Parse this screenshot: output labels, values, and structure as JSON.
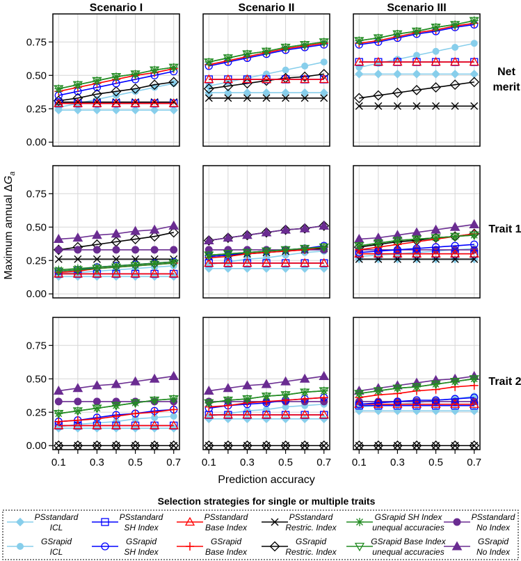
{
  "chart_data": {
    "type": "line",
    "col_titles": [
      "Scenario I",
      "Scenario II",
      "Scenario III"
    ],
    "row_titles": [
      [
        "Net",
        "merit"
      ],
      [
        "Trait 1"
      ],
      [
        "Trait 2"
      ]
    ],
    "xlabel": "Prediction accuracy",
    "ylabel": "Maximum annual ΔGₐ",
    "ylabel_main": "Maximum annual Δ",
    "ylabel_sub": "a",
    "ylabel_g": "G",
    "x": [
      0.1,
      0.2,
      0.3,
      0.4,
      0.5,
      0.6,
      0.7
    ],
    "xticks": [
      "0.1",
      "0.3",
      "0.5",
      "0.7"
    ],
    "xlim": [
      0.07,
      0.73
    ],
    "yticks": [
      "0.00",
      "0.25",
      "0.50",
      "0.75"
    ],
    "ylim": [
      -0.03,
      0.96
    ],
    "legend_title": "Selection strategies for single or multiple traits",
    "legend": [
      {
        "key": "ps_icl",
        "line1": "PSstandard",
        "line2": "ICL",
        "color": "#87ceeb",
        "marker": "diamond"
      },
      {
        "key": "gs_icl",
        "line1": "GSrapid",
        "line2": "ICL",
        "color": "#87ceeb",
        "marker": "dot"
      },
      {
        "key": "ps_sh",
        "line1": "PSstandard",
        "line2": "SH Index",
        "color": "#0000ff",
        "marker": "square"
      },
      {
        "key": "gs_sh",
        "line1": "GSrapid",
        "line2": "SH Index",
        "color": "#0000ff",
        "marker": "circle"
      },
      {
        "key": "ps_base",
        "line1": "PSstandard",
        "line2": "Base Index",
        "color": "#ff0000",
        "marker": "triangle"
      },
      {
        "key": "gs_base",
        "line1": "GSrapid",
        "line2": "Base Index",
        "color": "#ff0000",
        "marker": "plus"
      },
      {
        "key": "ps_restr",
        "line1": "PSstandard",
        "line2": "Restric. Index",
        "color": "#000000",
        "marker": "cross"
      },
      {
        "key": "gs_restr",
        "line1": "GSrapid",
        "line2": "Restric. Index",
        "color": "#000000",
        "marker": "opendiamond"
      },
      {
        "key": "gs_sh_ua",
        "line1": "GSrapid SH Index",
        "line2": "unequal accuracies",
        "color": "#228b22",
        "marker": "asterisk"
      },
      {
        "key": "gs_base_ua",
        "line1": "GSrapid Base Index",
        "line2": "unequal accuracies",
        "color": "#228b22",
        "marker": "invtriangle"
      },
      {
        "key": "ps_noidx",
        "line1": "PSstandard",
        "line2": "No Index",
        "color": "#6a2c91",
        "marker": "filledcircle"
      },
      {
        "key": "gs_noidx",
        "line1": "GSrapid",
        "line2": "No Index",
        "color": "#6a2c91",
        "marker": "filledtriangle"
      }
    ],
    "panels": [
      [
        {
          "ps_icl": [
            0.24,
            0.24,
            0.24,
            0.24,
            0.24,
            0.24,
            0.24
          ],
          "gs_icl": [
            0.26,
            0.29,
            0.32,
            0.35,
            0.38,
            0.41,
            0.44
          ],
          "ps_sh": [
            0.29,
            0.29,
            0.29,
            0.29,
            0.29,
            0.29,
            0.29
          ],
          "gs_sh": [
            0.35,
            0.38,
            0.41,
            0.44,
            0.47,
            0.5,
            0.53
          ],
          "ps_base": [
            0.29,
            0.29,
            0.29,
            0.29,
            0.29,
            0.29,
            0.29
          ],
          "gs_base": [
            0.38,
            0.41,
            0.44,
            0.47,
            0.5,
            0.52,
            0.55
          ],
          "ps_restr": [
            0.3,
            0.3,
            0.3,
            0.3,
            0.3,
            0.3,
            0.3
          ],
          "gs_restr": [
            0.31,
            0.33,
            0.36,
            0.38,
            0.4,
            0.43,
            0.45
          ],
          "gs_sh_ua": [
            0.4,
            0.43,
            0.46,
            0.49,
            0.51,
            0.54,
            0.56
          ],
          "gs_base_ua": [
            0.4,
            0.43,
            0.46,
            0.49,
            0.51,
            0.54,
            0.56
          ]
        },
        {
          "ps_icl": [
            0.37,
            0.37,
            0.37,
            0.37,
            0.37,
            0.37,
            0.37
          ],
          "gs_icl": [
            0.42,
            0.45,
            0.48,
            0.51,
            0.54,
            0.57,
            0.6
          ],
          "ps_sh": [
            0.47,
            0.47,
            0.47,
            0.47,
            0.47,
            0.47,
            0.47
          ],
          "gs_sh": [
            0.57,
            0.6,
            0.63,
            0.66,
            0.69,
            0.71,
            0.73
          ],
          "ps_base": [
            0.47,
            0.47,
            0.47,
            0.47,
            0.47,
            0.47,
            0.47
          ],
          "gs_base": [
            0.58,
            0.61,
            0.64,
            0.67,
            0.7,
            0.72,
            0.74
          ],
          "ps_restr": [
            0.33,
            0.33,
            0.33,
            0.33,
            0.33,
            0.33,
            0.33
          ],
          "gs_restr": [
            0.4,
            0.42,
            0.44,
            0.46,
            0.48,
            0.49,
            0.51
          ],
          "gs_sh_ua": [
            0.6,
            0.63,
            0.66,
            0.68,
            0.71,
            0.73,
            0.75
          ],
          "gs_base_ua": [
            0.6,
            0.63,
            0.66,
            0.68,
            0.71,
            0.73,
            0.75
          ]
        },
        {
          "ps_icl": [
            0.51,
            0.51,
            0.51,
            0.51,
            0.51,
            0.51,
            0.51
          ],
          "gs_icl": [
            0.56,
            0.59,
            0.62,
            0.65,
            0.68,
            0.71,
            0.74
          ],
          "ps_sh": [
            0.6,
            0.6,
            0.6,
            0.6,
            0.6,
            0.6,
            0.6
          ],
          "gs_sh": [
            0.73,
            0.75,
            0.78,
            0.81,
            0.83,
            0.86,
            0.88
          ],
          "ps_base": [
            0.6,
            0.6,
            0.6,
            0.6,
            0.6,
            0.6,
            0.6
          ],
          "gs_base": [
            0.74,
            0.76,
            0.79,
            0.82,
            0.84,
            0.87,
            0.89
          ],
          "ps_restr": [
            0.27,
            0.27,
            0.27,
            0.27,
            0.27,
            0.27,
            0.27
          ],
          "gs_restr": [
            0.33,
            0.35,
            0.37,
            0.39,
            0.41,
            0.43,
            0.45
          ],
          "gs_sh_ua": [
            0.76,
            0.78,
            0.81,
            0.83,
            0.86,
            0.88,
            0.91
          ],
          "gs_base_ua": [
            0.76,
            0.78,
            0.81,
            0.83,
            0.86,
            0.88,
            0.91
          ]
        }
      ],
      [
        {
          "ps_icl": [
            0.13,
            0.13,
            0.13,
            0.13,
            0.13,
            0.13,
            0.13
          ],
          "gs_icl": [
            0.15,
            0.16,
            0.17,
            0.18,
            0.19,
            0.2,
            0.21
          ],
          "ps_sh": [
            0.15,
            0.15,
            0.15,
            0.15,
            0.15,
            0.15,
            0.15
          ],
          "gs_sh": [
            0.17,
            0.18,
            0.2,
            0.21,
            0.22,
            0.23,
            0.24
          ],
          "ps_base": [
            0.15,
            0.15,
            0.15,
            0.15,
            0.15,
            0.15,
            0.15
          ],
          "gs_base": [
            0.16,
            0.17,
            0.19,
            0.2,
            0.21,
            0.22,
            0.23
          ],
          "ps_restr": [
            0.26,
            0.26,
            0.26,
            0.26,
            0.26,
            0.26,
            0.26
          ],
          "gs_restr": [
            0.33,
            0.35,
            0.37,
            0.39,
            0.41,
            0.43,
            0.46
          ],
          "gs_sh_ua": [
            0.18,
            0.19,
            0.2,
            0.21,
            0.22,
            0.23,
            0.24
          ],
          "gs_base_ua": [
            0.17,
            0.18,
            0.19,
            0.2,
            0.21,
            0.22,
            0.23
          ],
          "ps_noidx": [
            0.33,
            0.33,
            0.33,
            0.33,
            0.33,
            0.33,
            0.33
          ],
          "gs_noidx": [
            0.41,
            0.42,
            0.44,
            0.45,
            0.47,
            0.48,
            0.51
          ]
        },
        {
          "ps_icl": [
            0.19,
            0.19,
            0.19,
            0.19,
            0.19,
            0.19,
            0.19
          ],
          "gs_icl": [
            0.22,
            0.24,
            0.26,
            0.27,
            0.29,
            0.31,
            0.32
          ],
          "ps_sh": [
            0.23,
            0.23,
            0.23,
            0.23,
            0.23,
            0.23,
            0.23
          ],
          "gs_sh": [
            0.28,
            0.29,
            0.31,
            0.32,
            0.33,
            0.34,
            0.36
          ],
          "ps_base": [
            0.23,
            0.23,
            0.23,
            0.23,
            0.23,
            0.23,
            0.23
          ],
          "gs_base": [
            0.27,
            0.28,
            0.3,
            0.31,
            0.32,
            0.33,
            0.35
          ],
          "ps_restr": [
            0.28,
            0.29,
            0.3,
            0.31,
            0.32,
            0.33,
            0.34
          ],
          "gs_restr": [
            0.4,
            0.42,
            0.44,
            0.46,
            0.48,
            0.49,
            0.51
          ],
          "gs_sh_ua": [
            0.29,
            0.3,
            0.31,
            0.32,
            0.33,
            0.34,
            0.35
          ],
          "gs_base_ua": [
            0.29,
            0.3,
            0.31,
            0.32,
            0.33,
            0.34,
            0.35
          ],
          "ps_noidx": [
            0.33,
            0.33,
            0.33,
            0.33,
            0.33,
            0.33,
            0.33
          ],
          "gs_noidx": [
            0.4,
            0.42,
            0.44,
            0.46,
            0.48,
            0.49,
            0.51
          ]
        },
        {
          "ps_icl": [
            0.26,
            0.26,
            0.26,
            0.26,
            0.26,
            0.26,
            0.26
          ],
          "gs_icl": [
            0.28,
            0.29,
            0.3,
            0.31,
            0.32,
            0.33,
            0.34
          ],
          "ps_sh": [
            0.3,
            0.3,
            0.3,
            0.3,
            0.3,
            0.3,
            0.3
          ],
          "gs_sh": [
            0.31,
            0.32,
            0.33,
            0.34,
            0.35,
            0.36,
            0.37
          ],
          "ps_base": [
            0.3,
            0.3,
            0.3,
            0.3,
            0.3,
            0.3,
            0.3
          ],
          "gs_base": [
            0.33,
            0.35,
            0.37,
            0.39,
            0.41,
            0.43,
            0.45
          ],
          "ps_restr": [
            0.26,
            0.26,
            0.26,
            0.26,
            0.26,
            0.26,
            0.26
          ],
          "gs_restr": [
            0.35,
            0.37,
            0.39,
            0.4,
            0.42,
            0.43,
            0.45
          ],
          "gs_sh_ua": [
            0.36,
            0.38,
            0.4,
            0.41,
            0.42,
            0.43,
            0.44
          ],
          "gs_base_ua": [
            0.36,
            0.38,
            0.4,
            0.41,
            0.42,
            0.43,
            0.44
          ],
          "ps_noidx": [
            0.33,
            0.33,
            0.33,
            0.33,
            0.33,
            0.33,
            0.33
          ],
          "gs_noidx": [
            0.41,
            0.42,
            0.44,
            0.46,
            0.48,
            0.5,
            0.52
          ]
        }
      ],
      [
        {
          "ps_icl": [
            0.13,
            0.13,
            0.13,
            0.13,
            0.13,
            0.13,
            0.13
          ],
          "gs_icl": [
            0.14,
            0.16,
            0.17,
            0.18,
            0.2,
            0.21,
            0.22
          ],
          "ps_sh": [
            0.15,
            0.15,
            0.15,
            0.15,
            0.15,
            0.15,
            0.15
          ],
          "gs_sh": [
            0.18,
            0.19,
            0.21,
            0.23,
            0.24,
            0.26,
            0.27
          ],
          "ps_base": [
            0.15,
            0.15,
            0.15,
            0.15,
            0.15,
            0.15,
            0.15
          ],
          "gs_base": [
            0.18,
            0.19,
            0.2,
            0.22,
            0.24,
            0.25,
            0.27
          ],
          "ps_restr": [
            0.0,
            0.0,
            0.0,
            0.0,
            0.0,
            0.0,
            0.0
          ],
          "gs_restr": [
            0.0,
            0.0,
            0.0,
            0.0,
            0.0,
            0.0,
            0.0
          ],
          "gs_sh_ua": [
            0.24,
            0.26,
            0.28,
            0.3,
            0.32,
            0.34,
            0.35
          ],
          "gs_base_ua": [
            0.24,
            0.26,
            0.28,
            0.3,
            0.32,
            0.34,
            0.35
          ],
          "ps_noidx": [
            0.33,
            0.33,
            0.33,
            0.33,
            0.33,
            0.33,
            0.33
          ],
          "gs_noidx": [
            0.41,
            0.43,
            0.45,
            0.46,
            0.48,
            0.5,
            0.52
          ]
        },
        {
          "ps_icl": [
            0.2,
            0.2,
            0.2,
            0.2,
            0.2,
            0.2,
            0.2
          ],
          "gs_icl": [
            0.22,
            0.24,
            0.26,
            0.27,
            0.29,
            0.3,
            0.31
          ],
          "ps_sh": [
            0.23,
            0.23,
            0.23,
            0.23,
            0.23,
            0.23,
            0.23
          ],
          "gs_sh": [
            0.28,
            0.3,
            0.31,
            0.32,
            0.34,
            0.35,
            0.36
          ],
          "ps_base": [
            0.23,
            0.23,
            0.23,
            0.23,
            0.23,
            0.23,
            0.23
          ],
          "gs_base": [
            0.29,
            0.3,
            0.32,
            0.33,
            0.34,
            0.35,
            0.36
          ],
          "ps_restr": [
            0.0,
            0.0,
            0.0,
            0.0,
            0.0,
            0.0,
            0.0
          ],
          "gs_restr": [
            0.0,
            0.0,
            0.0,
            0.0,
            0.0,
            0.0,
            0.0
          ],
          "gs_sh_ua": [
            0.32,
            0.34,
            0.35,
            0.37,
            0.38,
            0.4,
            0.41
          ],
          "gs_base_ua": [
            0.32,
            0.34,
            0.35,
            0.37,
            0.38,
            0.4,
            0.41
          ],
          "ps_noidx": [
            0.33,
            0.33,
            0.33,
            0.33,
            0.33,
            0.33,
            0.33
          ],
          "gs_noidx": [
            0.41,
            0.43,
            0.45,
            0.46,
            0.48,
            0.5,
            0.52
          ]
        },
        {
          "ps_icl": [
            0.26,
            0.26,
            0.26,
            0.26,
            0.26,
            0.26,
            0.26
          ],
          "gs_icl": [
            0.29,
            0.3,
            0.31,
            0.32,
            0.34,
            0.35,
            0.37
          ],
          "ps_sh": [
            0.3,
            0.3,
            0.3,
            0.3,
            0.3,
            0.3,
            0.3
          ],
          "gs_sh": [
            0.31,
            0.32,
            0.33,
            0.34,
            0.34,
            0.35,
            0.36
          ],
          "ps_base": [
            0.31,
            0.31,
            0.31,
            0.31,
            0.31,
            0.31,
            0.31
          ],
          "gs_base": [
            0.36,
            0.38,
            0.39,
            0.41,
            0.42,
            0.44,
            0.45
          ],
          "ps_restr": [
            0.0,
            0.0,
            0.0,
            0.0,
            0.0,
            0.0,
            0.0
          ],
          "gs_restr": [
            0.0,
            0.0,
            0.0,
            0.0,
            0.0,
            0.0,
            0.0
          ],
          "gs_sh_ua": [
            0.39,
            0.41,
            0.43,
            0.44,
            0.46,
            0.48,
            0.5
          ],
          "gs_base_ua": [
            0.39,
            0.41,
            0.43,
            0.44,
            0.46,
            0.48,
            0.5
          ],
          "ps_noidx": [
            0.33,
            0.33,
            0.33,
            0.33,
            0.33,
            0.33,
            0.33
          ],
          "gs_noidx": [
            0.41,
            0.43,
            0.45,
            0.47,
            0.49,
            0.5,
            0.52
          ]
        }
      ]
    ]
  }
}
